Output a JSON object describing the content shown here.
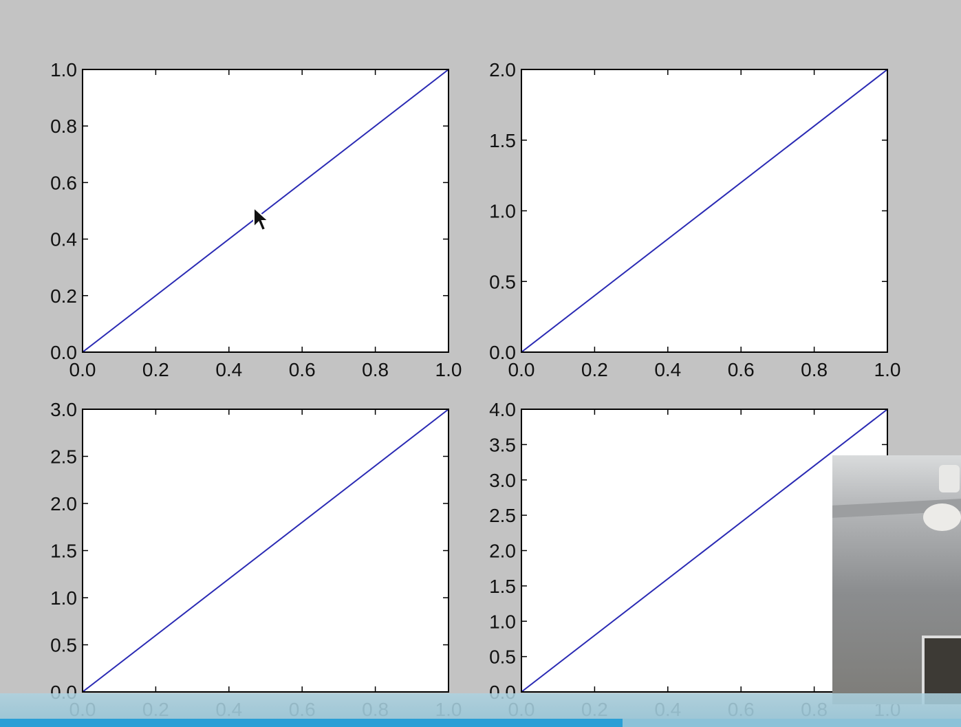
{
  "chart_data": [
    {
      "type": "line",
      "x": [
        0.0,
        1.0
      ],
      "series": [
        {
          "values": [
            0.0,
            1.0
          ]
        }
      ],
      "xlim": [
        0.0,
        1.0
      ],
      "ylim": [
        0.0,
        1.0
      ],
      "xticks": [
        "0.0",
        "0.2",
        "0.4",
        "0.6",
        "0.8",
        "1.0"
      ],
      "yticks": [
        "0.0",
        "0.2",
        "0.4",
        "0.6",
        "0.8",
        "1.0"
      ],
      "line_color": "#2a2ab4"
    },
    {
      "type": "line",
      "x": [
        0.0,
        1.0
      ],
      "series": [
        {
          "values": [
            0.0,
            2.0
          ]
        }
      ],
      "xlim": [
        0.0,
        1.0
      ],
      "ylim": [
        0.0,
        2.0
      ],
      "xticks": [
        "0.0",
        "0.2",
        "0.4",
        "0.6",
        "0.8",
        "1.0"
      ],
      "yticks": [
        "0.0",
        "0.5",
        "1.0",
        "1.5",
        "2.0"
      ],
      "line_color": "#2a2ab4"
    },
    {
      "type": "line",
      "x": [
        0.0,
        1.0
      ],
      "series": [
        {
          "values": [
            0.0,
            3.0
          ]
        }
      ],
      "xlim": [
        0.0,
        1.0
      ],
      "ylim": [
        0.0,
        3.0
      ],
      "xticks": [
        "0.0",
        "0.2",
        "0.4",
        "0.6",
        "0.8",
        "1.0"
      ],
      "yticks": [
        "0.0",
        "0.5",
        "1.0",
        "1.5",
        "2.0",
        "2.5",
        "3.0"
      ],
      "line_color": "#2a2ab4"
    },
    {
      "type": "line",
      "x": [
        0.0,
        1.0
      ],
      "series": [
        {
          "values": [
            0.0,
            4.0
          ]
        }
      ],
      "xlim": [
        0.0,
        1.0
      ],
      "ylim": [
        0.0,
        4.0
      ],
      "xticks": [
        "0.0",
        "0.2",
        "0.4",
        "0.6",
        "0.8",
        "1.0"
      ],
      "yticks": [
        "0.0",
        "0.5",
        "1.0",
        "1.5",
        "2.0",
        "2.5",
        "3.0",
        "3.5",
        "4.0"
      ],
      "line_color": "#2a2ab4"
    }
  ],
  "colors": {
    "figure_background": "#c3c3c3",
    "axes_background": "#ffffff",
    "line": "#2a2ab4"
  }
}
